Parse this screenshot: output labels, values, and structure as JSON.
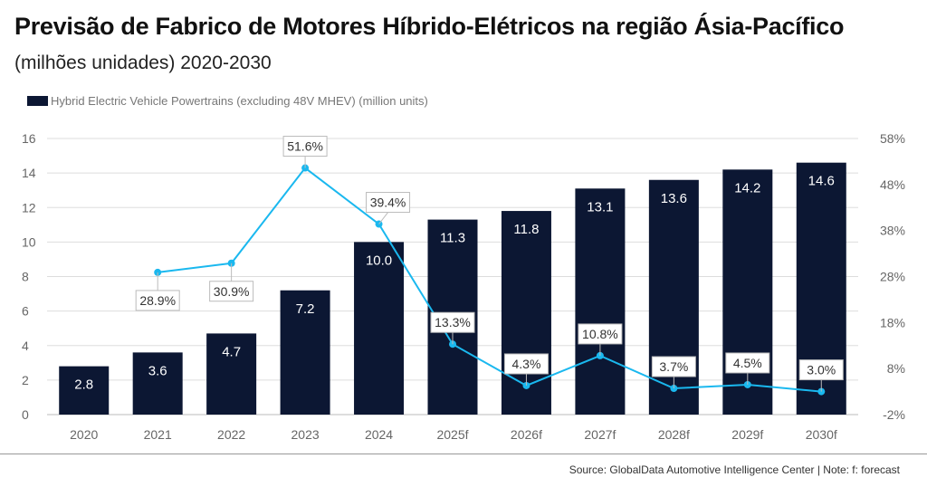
{
  "title": "Previsão de Fabrico de Motores Híbrido-Elétricos na região Ásia-Pacífico",
  "subtitle": "(milhões unidades) 2020-2030",
  "source": "Source: GlobalData Automotive Intelligence Center | Note: f: forecast",
  "chart_data": {
    "type": "bar+line",
    "title": "Previsão de Fabrico de Motores Híbrido-Elétricos na região Ásia-Pacífico",
    "subtitle": "(milhões unidades) 2020-2030",
    "categories": [
      "2020",
      "2021",
      "2022",
      "2023",
      "2024",
      "2025f",
      "2026f",
      "2027f",
      "2028f",
      "2029f",
      "2030f"
    ],
    "series": [
      {
        "name": "Hybrid Electric Vehicle Powertrains (excluding 48V MHEV) (million units)",
        "type": "bar",
        "axis": "left",
        "color": "#0c1733",
        "values": [
          2.8,
          3.6,
          4.7,
          7.2,
          10.0,
          11.3,
          11.8,
          13.1,
          13.6,
          14.2,
          14.6
        ],
        "labels": [
          "2.8",
          "3.6",
          "4.7",
          "7.2",
          "10.0",
          "11.3",
          "11.8",
          "13.1",
          "13.6",
          "14.2",
          "14.6"
        ]
      },
      {
        "type": "line",
        "axis": "right",
        "color": "#1ab8ef",
        "values": [
          null,
          28.9,
          30.9,
          51.6,
          39.4,
          13.3,
          4.3,
          10.8,
          3.7,
          4.5,
          3.0
        ],
        "labels": [
          "",
          "28.9%",
          "30.9%",
          "51.6%",
          "39.4%",
          "13.3%",
          "4.3%",
          "10.8%",
          "3.7%",
          "4.5%",
          "3.0%"
        ]
      }
    ],
    "y_left": {
      "range": [
        0,
        16
      ],
      "ticks": [
        "0",
        "2",
        "4",
        "6",
        "8",
        "10",
        "12",
        "14",
        "16"
      ]
    },
    "y_right": {
      "range": [
        -2,
        58
      ],
      "ticks": [
        "-2%",
        "8%",
        "18%",
        "28%",
        "38%",
        "48%",
        "58%"
      ]
    },
    "grid": true,
    "legend": "top-left"
  }
}
